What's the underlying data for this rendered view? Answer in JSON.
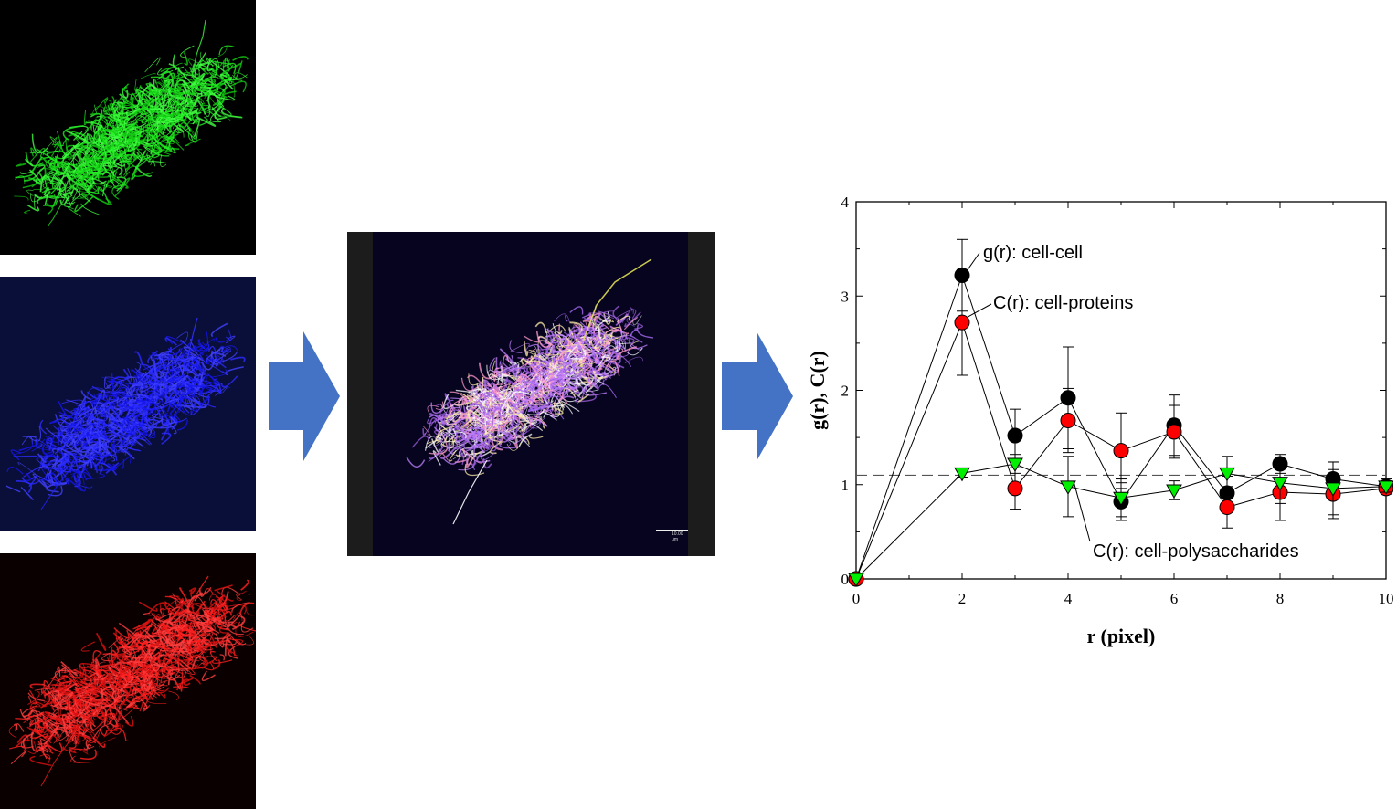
{
  "images": {
    "green_channel": "green-fluorescence-image",
    "blue_channel": "blue-fluorescence-image",
    "red_channel": "red-fluorescence-image",
    "merged": "merged-fluorescence-image",
    "scale_bar_label": "10.00 μm"
  },
  "arrows": [
    "arrow-right-icon",
    "arrow-right-icon"
  ],
  "colors": {
    "arrow": "#4472C4",
    "green": "#00e000",
    "blue": "#1a1aff",
    "red": "#ff1a1a",
    "series_black": "#000000",
    "series_red": "#ff0000",
    "series_green": "#00ee00"
  },
  "chart_data": {
    "type": "scatter",
    "xlabel": "r (pixel)",
    "ylabel": "g(r), C(r)",
    "xlim": [
      0,
      10
    ],
    "ylim": [
      0,
      4
    ],
    "xticks": [
      0,
      2,
      4,
      6,
      8,
      10
    ],
    "yticks": [
      0,
      1,
      2,
      3,
      4
    ],
    "reference_line": 1.1,
    "series": [
      {
        "name": "g(r): cell-cell",
        "marker": "circle",
        "color": "#000000",
        "x": [
          0,
          2,
          3,
          4,
          5,
          6,
          7,
          8,
          9,
          10
        ],
        "y": [
          0,
          3.22,
          1.52,
          1.92,
          0.82,
          1.63,
          0.91,
          1.22,
          1.06,
          0.98
        ],
        "err": [
          0,
          0.38,
          0.28,
          0.54,
          0.2,
          0.32,
          0.18,
          0.1,
          0.18,
          0.08
        ]
      },
      {
        "name": "C(r): cell-proteins",
        "marker": "circle",
        "color": "#ff0000",
        "x": [
          0,
          2,
          3,
          4,
          5,
          6,
          7,
          8,
          9,
          10
        ],
        "y": [
          0,
          2.72,
          0.96,
          1.68,
          1.36,
          1.56,
          0.76,
          0.92,
          0.9,
          0.96
        ],
        "err": [
          0,
          0.56,
          0.22,
          0.34,
          0.4,
          0.28,
          0.22,
          0.3,
          0.26,
          0.06
        ]
      },
      {
        "name": "C(r): cell-polysaccharides",
        "marker": "triangle-down",
        "color": "#00ee00",
        "x": [
          0,
          2,
          3,
          4,
          5,
          6,
          7,
          8,
          9,
          10
        ],
        "y": [
          0,
          1.12,
          1.22,
          0.98,
          0.86,
          0.94,
          1.12,
          1.02,
          0.96,
          0.98
        ],
        "err": [
          0,
          0.04,
          0.1,
          0.32,
          0.2,
          0.1,
          0.18,
          0.22,
          0.28,
          0.06
        ]
      }
    ]
  }
}
